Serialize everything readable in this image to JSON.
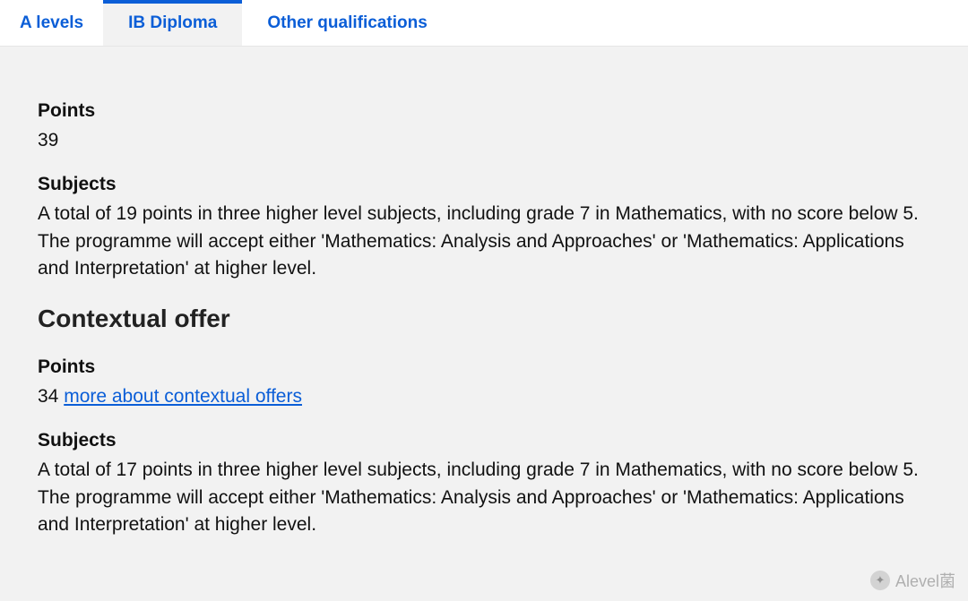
{
  "tabs": {
    "items": [
      {
        "label": "A levels",
        "active": false
      },
      {
        "label": "IB Diploma",
        "active": true
      },
      {
        "label": "Other qualifications",
        "active": false
      }
    ]
  },
  "main": {
    "points_label": "Points",
    "points_value": "39",
    "subjects_label": "Subjects",
    "subjects_text": "A total of 19 points in three higher level subjects, including grade 7 in Mathematics, with no score below 5. The programme will accept either 'Mathematics: Analysis and Approaches' or 'Mathematics: Applications and Interpretation' at higher level."
  },
  "contextual": {
    "heading": "Contextual offer",
    "points_label": "Points",
    "points_value": "34",
    "link_text": "more about contextual offers",
    "subjects_label": "Subjects",
    "subjects_text": "A total of 17 points in three higher level subjects, including grade 7 in Mathematics, with no score below 5. The programme will accept either 'Mathematics: Analysis and Approaches' or 'Mathematics: Applications and Interpretation' at higher level."
  },
  "watermark": {
    "text": "Alevel菌"
  },
  "colors": {
    "link": "#0b5ed7",
    "background": "#f2f2f2",
    "tab_bg": "#ffffff",
    "text": "#111111"
  }
}
